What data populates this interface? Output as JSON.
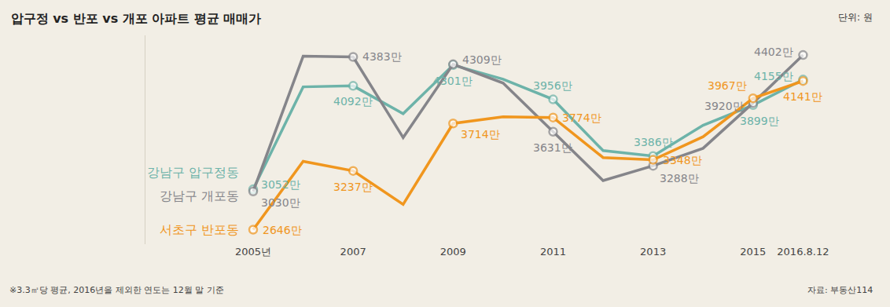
{
  "chart_data": {
    "type": "line",
    "title": "압구정 vs 반포 vs 개포 아파트 평균 매매가",
    "annotations": [
      "단위: 원",
      "※3.3㎡당 평균, 2016년을 제외한 연도는 12월 말 기준",
      "자료: 부동산114"
    ],
    "categories": [
      "2005년",
      null,
      "2007",
      null,
      "2009",
      null,
      "2011",
      null,
      "2013",
      null,
      "2015",
      "2016.8.12"
    ],
    "series": [
      {
        "name": "강남구 압구정동",
        "color": "#6db3a9",
        "values": [
          3052,
          4082,
          4092,
          3812,
          4301,
          4159,
          3956,
          3441,
          3386,
          3696,
          3899,
          4155
        ],
        "value_labels": [
          "3052만",
          null,
          "4092만",
          null,
          "4301만",
          null,
          "3956만",
          null,
          "3386만",
          null,
          "3899만",
          "4155만"
        ]
      },
      {
        "name": "강남구 개포동",
        "color": "#85858a",
        "values": [
          3030,
          4390,
          4383,
          3572,
          4309,
          4120,
          3631,
          3140,
          3288,
          3464,
          3920,
          4402
        ],
        "value_labels": [
          "3030만",
          null,
          "4383만",
          null,
          "4309만",
          null,
          "3631만",
          null,
          "3288만",
          null,
          "3920만",
          "4402만"
        ]
      },
      {
        "name": "서초구 반포동",
        "color": "#f0961e",
        "values": [
          2646,
          3333,
          3237,
          2900,
          3714,
          3781,
          3774,
          3371,
          3348,
          3580,
          3967,
          4141
        ],
        "value_labels": [
          "2646만",
          null,
          "3237만",
          null,
          "3714만",
          null,
          "3774만",
          null,
          "3348만",
          null,
          "3967만",
          "4141만"
        ]
      }
    ],
    "ylim": [
      2500,
      4600
    ],
    "tick_labels": "x",
    "grid": false,
    "data_labels": true,
    "marker": "circle"
  }
}
